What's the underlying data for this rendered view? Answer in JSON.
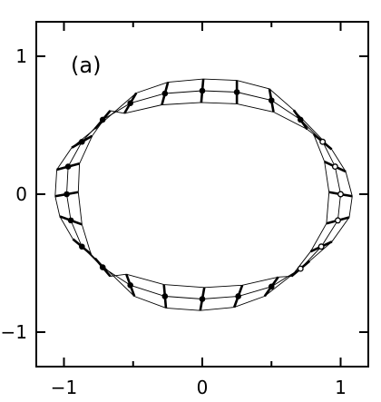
{
  "chart_data": {
    "type": "scatter",
    "title": "",
    "panel_label": "(a)",
    "xlabel": "",
    "ylabel": "",
    "xlim": [
      -1.2,
      1.2
    ],
    "ylim": [
      -1.25,
      1.25
    ],
    "x_ticks": [
      -1,
      0,
      1
    ],
    "y_ticks": [
      -1,
      0,
      1
    ],
    "x_tick_labels": [
      "−1",
      "0",
      "1"
    ],
    "y_tick_labels": [
      "−1",
      "0",
      "1"
    ],
    "minor_x_ticks": [
      -0.5,
      0.5
    ],
    "grid": false,
    "axis_color": "#000000",
    "series": [
      {
        "marker": "filled-circle",
        "points": [
          {
            "x": -0.98,
            "y": 0.0,
            "bar_angle_deg": 10
          },
          {
            "x": -0.97,
            "y": 0.2,
            "bar_angle_deg": 15
          },
          {
            "x": -0.87,
            "y": 0.38,
            "bar_angle_deg": 30
          },
          {
            "x": -0.72,
            "y": 0.54,
            "bar_angle_deg": 50
          },
          {
            "x": -0.52,
            "y": 0.66,
            "bar_angle_deg": 60
          },
          {
            "x": -0.27,
            "y": 0.73,
            "bar_angle_deg": 75
          },
          {
            "x": 0.0,
            "y": 0.75,
            "bar_angle_deg": 85
          },
          {
            "x": 0.25,
            "y": 0.74,
            "bar_angle_deg": 90
          },
          {
            "x": 0.5,
            "y": 0.68,
            "bar_angle_deg": 100
          },
          {
            "x": 0.71,
            "y": 0.54,
            "bar_angle_deg": 125
          },
          {
            "x": -0.95,
            "y": -0.19,
            "bar_angle_deg": 160
          },
          {
            "x": -0.87,
            "y": -0.38,
            "bar_angle_deg": 140
          },
          {
            "x": -0.72,
            "y": -0.53,
            "bar_angle_deg": 130
          },
          {
            "x": -0.52,
            "y": -0.66,
            "bar_angle_deg": 110
          },
          {
            "x": -0.27,
            "y": -0.74,
            "bar_angle_deg": 95
          },
          {
            "x": 0.0,
            "y": -0.76,
            "bar_angle_deg": 80
          },
          {
            "x": 0.26,
            "y": -0.74,
            "bar_angle_deg": 70
          },
          {
            "x": 0.5,
            "y": -0.67,
            "bar_angle_deg": 55
          }
        ]
      },
      {
        "marker": "open-circle",
        "points": [
          {
            "x": 0.87,
            "y": 0.38,
            "bar_angle_deg": 140
          },
          {
            "x": 0.96,
            "y": 0.2,
            "bar_angle_deg": 155
          },
          {
            "x": 1.0,
            "y": 0.0,
            "bar_angle_deg": 170
          },
          {
            "x": 0.98,
            "y": -0.19,
            "bar_angle_deg": 15
          },
          {
            "x": 0.86,
            "y": -0.38,
            "bar_angle_deg": 25
          },
          {
            "x": 0.71,
            "y": -0.54,
            "bar_angle_deg": 40
          }
        ]
      }
    ]
  }
}
